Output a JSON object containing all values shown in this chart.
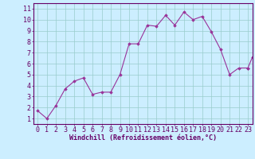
{
  "x": [
    0,
    1,
    2,
    3,
    4,
    5,
    6,
    7,
    8,
    9,
    10,
    11,
    12,
    13,
    14,
    15,
    16,
    17,
    18,
    19,
    20,
    21,
    22,
    23
  ],
  "y": [
    1.7,
    1.0,
    2.2,
    3.7,
    4.4,
    4.7,
    3.2,
    3.4,
    3.4,
    5.0,
    7.8,
    7.8,
    9.5,
    9.4,
    10.4,
    9.5,
    10.7,
    10.0,
    10.3,
    8.9,
    7.3,
    5.0,
    5.6,
    5.6
  ],
  "extra_x": [
    23.5
  ],
  "extra_y": [
    6.6
  ],
  "line_color": "#993399",
  "marker_color": "#993399",
  "bg_color": "#cceeff",
  "grid_color": "#99cccc",
  "xlabel": "Windchill (Refroidissement éolien,°C)",
  "xlim": [
    -0.5,
    23.5
  ],
  "ylim": [
    0.5,
    11.5
  ],
  "yticks": [
    1,
    2,
    3,
    4,
    5,
    6,
    7,
    8,
    9,
    10,
    11
  ],
  "xticks": [
    0,
    1,
    2,
    3,
    4,
    5,
    6,
    7,
    8,
    9,
    10,
    11,
    12,
    13,
    14,
    15,
    16,
    17,
    18,
    19,
    20,
    21,
    22,
    23
  ],
  "axis_color": "#660066",
  "tick_color": "#660066",
  "label_color": "#660066",
  "font_family": "monospace",
  "font_size_ticks": 6,
  "font_size_label": 6
}
